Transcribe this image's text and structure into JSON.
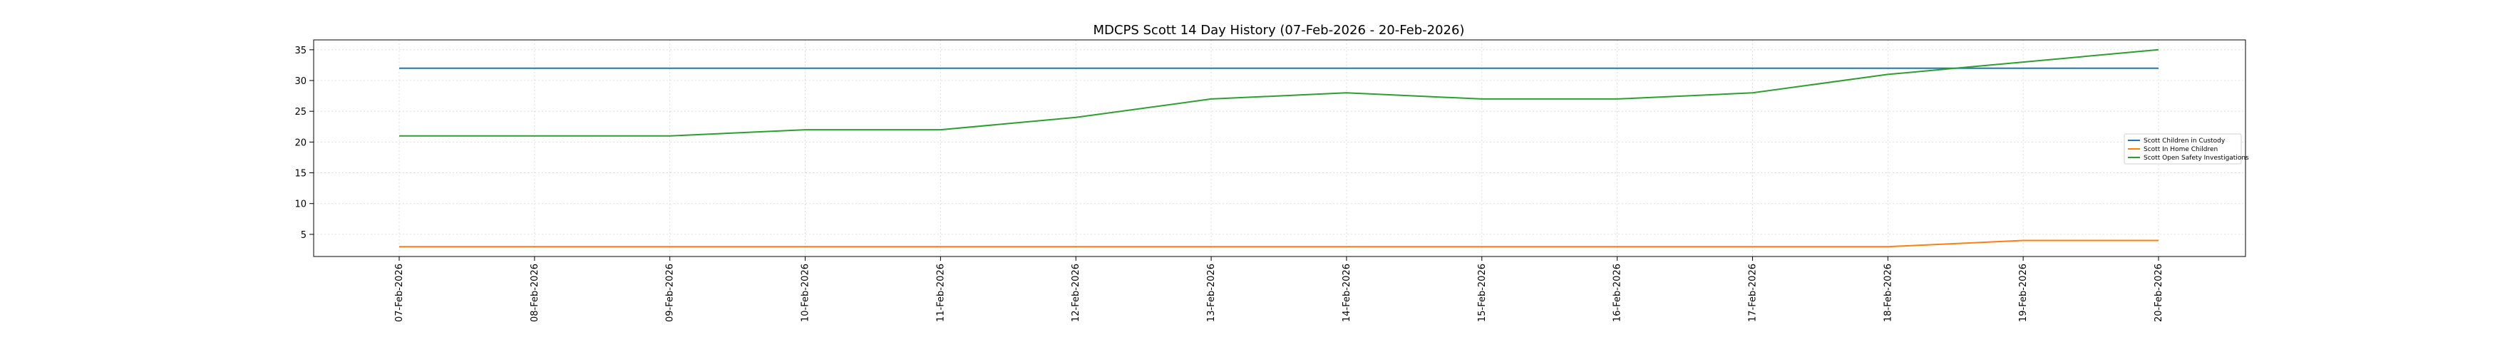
{
  "chart_data": {
    "type": "line",
    "title": "MDCPS Scott 14 Day History (07-Feb-2026 - 20-Feb-2026)",
    "xlabel": "",
    "ylabel": "",
    "categories": [
      "07-Feb-2026",
      "08-Feb-2026",
      "09-Feb-2026",
      "10-Feb-2026",
      "11-Feb-2026",
      "12-Feb-2026",
      "13-Feb-2026",
      "14-Feb-2026",
      "15-Feb-2026",
      "16-Feb-2026",
      "17-Feb-2026",
      "18-Feb-2026",
      "19-Feb-2026",
      "20-Feb-2026"
    ],
    "ylim": [
      1.4,
      36.6
    ],
    "yticks": [
      5,
      10,
      15,
      20,
      25,
      30,
      35
    ],
    "grid": true,
    "legend_position": "right",
    "series": [
      {
        "name": "Scott Children in Custody",
        "color": "#1f77b4",
        "values": [
          32,
          32,
          32,
          32,
          32,
          32,
          32,
          32,
          32,
          32,
          32,
          32,
          32,
          32
        ]
      },
      {
        "name": "Scott In Home Children",
        "color": "#ff7f0e",
        "values": [
          3,
          3,
          3,
          3,
          3,
          3,
          3,
          3,
          3,
          3,
          3,
          3,
          4,
          4
        ]
      },
      {
        "name": "Scott Open Safety Investigations",
        "color": "#2ca02c",
        "values": [
          21,
          21,
          21,
          22,
          22,
          24,
          27,
          28,
          27,
          27,
          28,
          31,
          33,
          35
        ]
      }
    ]
  }
}
